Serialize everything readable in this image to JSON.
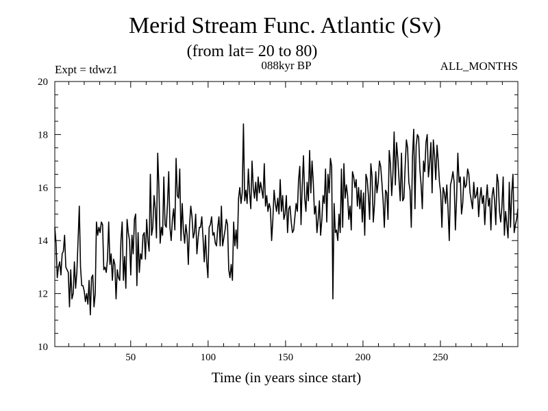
{
  "chart_data": {
    "type": "line",
    "title": "Merid Stream Func. Atlantic (Sv)",
    "subtitle": "(from lat= 20 to 80)",
    "annotation_left": "Expt = tdwz1",
    "annotation_center": "088kyr BP",
    "annotation_right": "ALL_MONTHS",
    "xlabel": "Time (in years since start)",
    "ylabel": "",
    "xlim": [
      1,
      300
    ],
    "ylim": [
      10,
      20
    ],
    "xticks": [
      50,
      100,
      150,
      200,
      250
    ],
    "yticks": [
      10,
      12,
      14,
      16,
      18,
      20
    ],
    "grid": false,
    "series": [
      {
        "values": [
          14.5,
          13.9,
          12.6,
          13.0,
          13.2,
          12.7,
          13.5,
          13.6,
          14.2,
          13.0,
          12.9,
          12.8,
          11.5,
          12.9,
          11.8,
          12.0,
          13.2,
          12.2,
          12.8,
          14.0,
          15.3,
          13.0,
          12.3,
          12.3,
          12.1,
          11.7,
          12.0,
          11.6,
          12.5,
          11.2,
          12.6,
          12.7,
          11.5,
          12.0,
          14.7,
          14.2,
          14.5,
          14.3,
          14.7,
          14.6,
          12.9,
          13.0,
          12.8,
          13.3,
          14.7,
          13.1,
          13.5,
          12.5,
          13.3,
          13.1,
          11.8,
          12.9,
          12.6,
          12.5,
          14.0,
          14.7,
          12.5,
          13.4,
          12.2,
          14.8,
          14.3,
          14.0,
          12.7,
          14.2,
          13.5,
          14.8,
          15.0,
          12.3,
          14.3,
          12.8,
          13.5,
          13.3,
          14.2,
          14.3,
          13.3,
          14.8,
          14.0,
          13.6,
          16.5,
          14.2,
          14.5,
          15.7,
          15.2,
          14.1,
          17.3,
          16.0,
          13.9,
          14.5,
          14.2,
          16.4,
          14.6,
          14.5,
          15.4,
          16.6,
          14.5,
          14.0,
          14.8,
          15.2,
          14.4,
          17.1,
          15.7,
          15.6,
          16.7,
          14.0,
          15.4,
          14.4,
          13.9,
          14.6,
          14.2,
          13.1,
          14.6,
          15.3,
          14.9,
          14.1,
          14.3,
          15.0,
          13.5,
          14.1,
          14.5,
          14.5,
          14.9,
          14.1,
          13.2,
          14.2,
          13.2,
          12.6,
          14.5,
          14.6,
          14.9,
          14.2,
          14.3,
          13.9,
          13.8,
          14.5,
          14.9,
          13.8,
          15.3,
          13.8,
          14.1,
          14.4,
          14.8,
          14.6,
          12.9,
          12.6,
          13.1,
          12.5,
          14.7,
          13.8,
          14.4,
          13.7,
          15.6,
          16.0,
          15.4,
          15.8,
          18.4,
          15.5,
          15.9,
          15.4,
          16.7,
          15.8,
          15.2,
          17.0,
          16.0,
          15.6,
          16.2,
          15.5,
          16.4,
          15.8,
          16.2,
          15.9,
          15.6,
          16.9,
          15.3,
          15.7,
          15.1,
          15.4,
          15.2,
          14.0,
          14.8,
          15.9,
          15.4,
          15.1,
          15.6,
          15.0,
          16.3,
          15.1,
          15.7,
          14.8,
          15.0,
          15.7,
          14.3,
          15.2,
          15.3,
          14.7,
          14.3,
          14.4,
          14.9,
          15.4,
          15.1,
          16.3,
          16.8,
          14.6,
          16.1,
          17.2,
          15.6,
          15.1,
          16.2,
          15.5,
          17.4,
          15.8,
          17.0,
          16.2,
          15.0,
          15.3,
          14.3,
          14.8,
          15.5,
          14.2,
          14.8,
          15.7,
          15.4,
          16.7,
          14.7,
          16.5,
          15.8,
          17.1,
          16.8,
          11.8,
          15.4,
          14.3,
          14.4,
          14.0,
          15.0,
          14.3,
          16.7,
          14.5,
          16.9,
          15.6,
          16.1,
          15.7,
          14.8,
          15.3,
          14.4,
          16.6,
          16.4,
          16.0,
          16.3,
          15.3,
          16.0,
          15.2,
          15.9,
          14.7,
          15.8,
          14.2,
          16.5,
          16.3,
          15.7,
          14.8,
          16.9,
          16.4,
          14.7,
          15.4,
          16.6,
          15.8,
          16.2,
          17.0,
          16.8,
          16.2,
          15.5,
          14.5,
          15.9,
          15.8,
          14.8,
          17.4,
          16.9,
          15.7,
          16.5,
          18.1,
          16.1,
          17.7,
          17.1,
          16.3,
          15.5,
          17.3,
          15.5,
          15.6,
          16.8,
          17.8,
          17.5,
          16.2,
          15.9,
          14.5,
          17.2,
          18.2,
          15.2,
          17.6,
          18.0,
          17.9,
          16.7,
          16.1,
          15.2,
          17.0,
          16.6,
          17.7,
          18.0,
          16.4,
          16.9,
          17.7,
          15.8,
          17.8,
          17.2,
          16.3,
          17.6,
          17.0,
          16.2,
          15.8,
          14.5,
          16.0,
          15.8,
          15.4,
          16.1,
          15.2,
          14.0,
          16.1,
          16.3,
          16.6,
          16.2,
          14.4,
          15.6,
          17.3,
          16.2,
          16.4,
          15.0,
          15.4,
          16.4,
          16.0,
          16.1,
          16.7,
          16.5,
          15.8,
          15.5,
          15.2,
          16.2,
          15.6,
          15.7,
          16.0,
          14.9,
          15.6,
          16.0,
          15.4,
          15.7,
          14.6,
          15.5,
          16.1,
          15.3,
          15.6,
          14.4,
          15.7,
          16.0,
          15.5,
          14.6,
          16.5,
          16.2,
          15.1,
          14.7,
          15.3,
          16.4,
          14.2,
          15.1,
          14.6,
          14.1,
          16.2,
          14.5,
          15.8,
          16.5,
          14.3,
          14.6,
          14.8,
          15.2
        ]
      }
    ]
  }
}
